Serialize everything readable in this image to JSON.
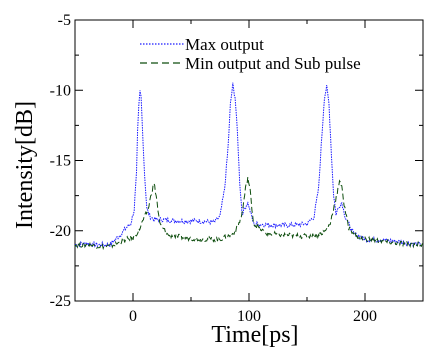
{
  "chart_data": {
    "type": "line",
    "title": "",
    "xlabel": "Time[ps]",
    "ylabel": "Intensity[dB]",
    "xlim": [
      -50,
      250
    ],
    "ylim": [
      -25,
      -5
    ],
    "xticks": [
      0,
      100,
      200
    ],
    "yticks": [
      -25,
      -20,
      -15,
      -10,
      -5
    ],
    "grid": false,
    "legend_position": "top-center",
    "series": [
      {
        "name": "Max output",
        "color": "#1a1aff",
        "style": "dotted",
        "points": [
          [
            -50,
            -21.0
          ],
          [
            -40,
            -20.9
          ],
          [
            -30,
            -21.0
          ],
          [
            -20,
            -21.0
          ],
          [
            -10,
            -20.2
          ],
          [
            -6,
            -19.8
          ],
          [
            -2,
            -19.5
          ],
          [
            1,
            -18.5
          ],
          [
            3,
            -16.0
          ],
          [
            4,
            -13.0
          ],
          [
            5,
            -11.2
          ],
          [
            6,
            -10.1
          ],
          [
            7,
            -10.5
          ],
          [
            8,
            -12.5
          ],
          [
            10,
            -16.0
          ],
          [
            12,
            -18.5
          ],
          [
            15,
            -19.0
          ],
          [
            18,
            -19.2
          ],
          [
            25,
            -19.2
          ],
          [
            40,
            -19.3
          ],
          [
            55,
            -19.3
          ],
          [
            70,
            -19.4
          ],
          [
            75,
            -19.0
          ],
          [
            79,
            -17.0
          ],
          [
            82,
            -14.0
          ],
          [
            84,
            -11.0
          ],
          [
            86,
            -9.6
          ],
          [
            88,
            -10.5
          ],
          [
            90,
            -13.0
          ],
          [
            92,
            -16.5
          ],
          [
            94,
            -18.8
          ],
          [
            97,
            -18.3
          ],
          [
            99,
            -18.0
          ],
          [
            101,
            -18.6
          ],
          [
            104,
            -19.5
          ],
          [
            120,
            -19.6
          ],
          [
            140,
            -19.6
          ],
          [
            150,
            -19.5
          ],
          [
            156,
            -19.0
          ],
          [
            160,
            -17.0
          ],
          [
            163,
            -13.0
          ],
          [
            165,
            -10.5
          ],
          [
            167,
            -9.8
          ],
          [
            169,
            -11.0
          ],
          [
            171,
            -14.5
          ],
          [
            173,
            -17.5
          ],
          [
            175,
            -18.8
          ],
          [
            178,
            -18.2
          ],
          [
            180,
            -18.0
          ],
          [
            183,
            -19.0
          ],
          [
            190,
            -20.2
          ],
          [
            200,
            -20.6
          ],
          [
            220,
            -20.7
          ],
          [
            240,
            -20.9
          ],
          [
            250,
            -21.0
          ]
        ]
      },
      {
        "name": "Min output and Sub pulse",
        "color": "#0d4d0d",
        "style": "dashed",
        "points": [
          [
            -50,
            -21.0
          ],
          [
            -40,
            -21.0
          ],
          [
            -30,
            -21.1
          ],
          [
            -20,
            -21.1
          ],
          [
            -10,
            -20.8
          ],
          [
            -5,
            -20.6
          ],
          [
            0,
            -20.5
          ],
          [
            5,
            -20.0
          ],
          [
            9,
            -19.2
          ],
          [
            13,
            -18.5
          ],
          [
            16,
            -17.3
          ],
          [
            18,
            -16.6
          ],
          [
            20,
            -17.5
          ],
          [
            23,
            -19.5
          ],
          [
            30,
            -20.3
          ],
          [
            45,
            -20.5
          ],
          [
            60,
            -20.6
          ],
          [
            75,
            -20.6
          ],
          [
            85,
            -20.3
          ],
          [
            90,
            -19.8
          ],
          [
            94,
            -18.8
          ],
          [
            97,
            -17.0
          ],
          [
            99,
            -16.2
          ],
          [
            101,
            -17.2
          ],
          [
            104,
            -19.5
          ],
          [
            115,
            -20.2
          ],
          [
            130,
            -20.3
          ],
          [
            150,
            -20.4
          ],
          [
            160,
            -20.3
          ],
          [
            166,
            -20.0
          ],
          [
            170,
            -19.5
          ],
          [
            174,
            -18.0
          ],
          [
            178,
            -16.6
          ],
          [
            180,
            -16.7
          ],
          [
            182,
            -18.2
          ],
          [
            186,
            -19.8
          ],
          [
            195,
            -20.5
          ],
          [
            210,
            -20.7
          ],
          [
            230,
            -20.9
          ],
          [
            250,
            -21.0
          ]
        ]
      }
    ]
  }
}
